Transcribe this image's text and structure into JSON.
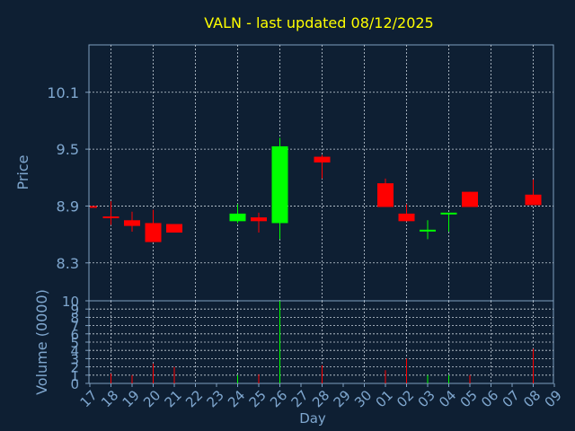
{
  "chart_data": {
    "type": "candlestick",
    "title": "VALN - last updated 08/12/2025",
    "xlabel": "Day",
    "price_panel": {
      "ylabel": "Price",
      "ylim": [
        7.9,
        10.6
      ],
      "yticks": [
        "8.3",
        "8.9",
        "9.5",
        "10.1"
      ],
      "ytick_values": [
        8.3,
        8.9,
        9.5,
        10.1
      ],
      "grid": true
    },
    "volume_panel": {
      "ylabel": "Volume (0000)",
      "ylim": [
        0,
        10
      ],
      "yticks": [
        "0",
        "1",
        "2",
        "3",
        "4",
        "5",
        "6",
        "7",
        "8",
        "9",
        "10"
      ],
      "grid": true
    },
    "xticks": [
      "17",
      "18",
      "19",
      "20",
      "21",
      "22",
      "23",
      "24",
      "25",
      "26",
      "27",
      "28",
      "29",
      "30",
      "01",
      "02",
      "03",
      "04",
      "05",
      "06",
      "07",
      "08",
      "09"
    ],
    "candles": [
      {
        "day": "17",
        "open": 8.9,
        "close": 8.9,
        "high": 8.9,
        "low": 8.9,
        "volume": 0
      },
      {
        "day": "18",
        "open": 8.79,
        "close": 8.79,
        "high": 8.95,
        "low": 8.7,
        "volume": 1.2
      },
      {
        "day": "19",
        "open": 8.75,
        "close": 8.69,
        "high": 8.84,
        "low": 8.63,
        "volume": 1.0
      },
      {
        "day": "20",
        "open": 8.72,
        "close": 8.52,
        "high": 8.86,
        "low": 8.52,
        "volume": 2.4
      },
      {
        "day": "21",
        "open": 8.71,
        "close": 8.62,
        "high": 8.71,
        "low": 8.62,
        "volume": 2.0
      },
      {
        "day": "24",
        "open": 8.74,
        "close": 8.82,
        "high": 8.92,
        "low": 8.72,
        "volume": 1.0
      },
      {
        "day": "25",
        "open": 8.78,
        "close": 8.74,
        "high": 8.83,
        "low": 8.62,
        "volume": 1.1
      },
      {
        "day": "26",
        "open": 8.72,
        "close": 9.53,
        "high": 9.62,
        "low": 8.55,
        "volume": 10
      },
      {
        "day": "28",
        "open": 9.42,
        "close": 9.36,
        "high": 9.44,
        "low": 9.19,
        "volume": 2.2
      },
      {
        "day": "01",
        "open": 9.14,
        "close": 8.89,
        "high": 9.19,
        "low": 8.89,
        "volume": 1.6
      },
      {
        "day": "02",
        "open": 8.82,
        "close": 8.74,
        "high": 8.92,
        "low": 8.74,
        "volume": 3.0
      },
      {
        "day": "03",
        "open": 8.64,
        "close": 8.65,
        "high": 8.75,
        "low": 8.55,
        "volume": 1.0
      },
      {
        "day": "04",
        "open": 8.82,
        "close": 8.83,
        "high": 8.83,
        "low": 8.63,
        "volume": 1.0
      },
      {
        "day": "05",
        "open": 9.05,
        "close": 8.89,
        "high": 9.05,
        "low": 8.89,
        "volume": 1.0
      },
      {
        "day": "08",
        "open": 9.02,
        "close": 8.91,
        "high": 9.18,
        "low": 8.91,
        "volume": 4.2
      }
    ],
    "colors": {
      "background": "#0e1f33",
      "up": "#00ff00",
      "down": "#ff0000",
      "title": "#ffff00",
      "axis_text": "#7fa7cf",
      "frame": "#7f9fbf",
      "grid": "#c8d2dc"
    }
  }
}
